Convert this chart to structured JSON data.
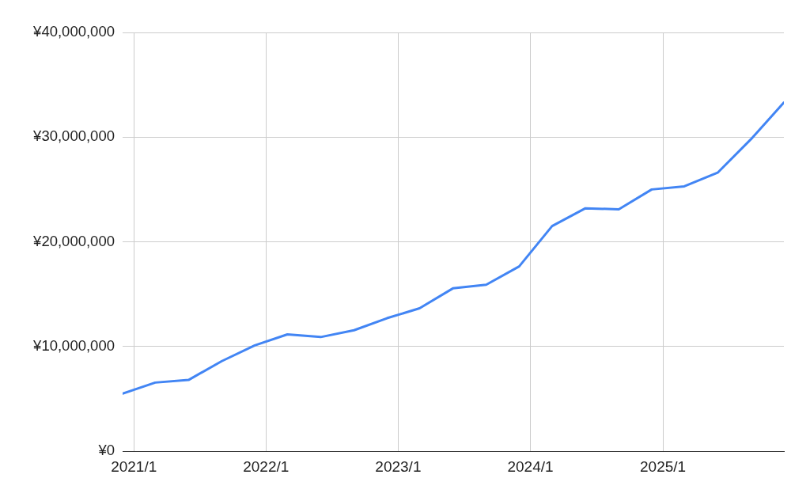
{
  "chart_data": {
    "type": "line",
    "x": [
      "2020-12",
      "2021-03",
      "2021-06",
      "2021-09",
      "2021-12",
      "2022-03",
      "2022-06",
      "2022-09",
      "2022-12",
      "2023-03",
      "2023-06",
      "2023-09",
      "2023-12",
      "2024-03",
      "2024-06",
      "2024-09",
      "2024-12",
      "2025-03",
      "2025-06",
      "2025-09",
      "2025-12"
    ],
    "values": [
      5500000,
      6550000,
      6800000,
      8600000,
      10100000,
      11150000,
      10900000,
      11550000,
      12700000,
      13650000,
      15550000,
      15900000,
      17650000,
      21500000,
      23200000,
      23100000,
      25000000,
      25300000,
      26600000,
      29800000,
      33300000
    ],
    "color": "#4285f4",
    "xlim": [
      "2020-12",
      "2025-12"
    ],
    "xticks": [
      {
        "value": "2021-01",
        "label": "2021/1"
      },
      {
        "value": "2022-01",
        "label": "2022/1"
      },
      {
        "value": "2023-01",
        "label": "2023/1"
      },
      {
        "value": "2024-01",
        "label": "2024/1"
      },
      {
        "value": "2025-01",
        "label": "2025/1"
      }
    ],
    "ylim": [
      0,
      40000000
    ],
    "yticks": [
      {
        "value": 0,
        "label": "¥0"
      },
      {
        "value": 10000000,
        "label": "¥10,000,000"
      },
      {
        "value": 20000000,
        "label": "¥20,000,000"
      },
      {
        "value": 30000000,
        "label": "¥30,000,000"
      },
      {
        "value": 40000000,
        "label": "¥40,000,000"
      }
    ],
    "grid": true,
    "marker": "none",
    "line_style": "solid"
  }
}
